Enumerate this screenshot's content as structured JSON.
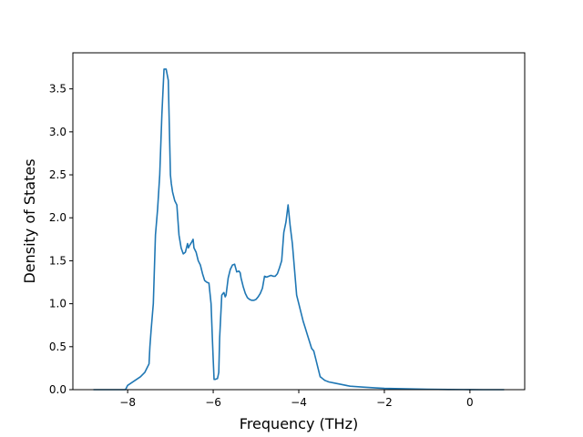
{
  "chart_data": {
    "type": "line",
    "title": "",
    "xlabel": "Frequency (THz)",
    "ylabel": "Density of States",
    "xlim": [
      -9.28,
      1.28
    ],
    "ylim": [
      0.0,
      3.92
    ],
    "x_ticks": [
      -8,
      -6,
      -4,
      -2,
      0
    ],
    "x_tick_labels": [
      "−8",
      "−6",
      "−4",
      "−2",
      "0"
    ],
    "y_ticks": [
      0.0,
      0.5,
      1.0,
      1.5,
      2.0,
      2.5,
      3.0,
      3.5
    ],
    "y_tick_labels": [
      "0.0",
      "0.5",
      "1.0",
      "1.5",
      "2.0",
      "2.5",
      "3.0",
      "3.5"
    ],
    "grid": false,
    "legend": "none",
    "series": [
      {
        "color": "#1f77b4",
        "x": [
          -8.8,
          -8.5,
          -8.2,
          -8.05,
          -8.0,
          -7.85,
          -7.7,
          -7.6,
          -7.55,
          -7.5,
          -7.48,
          -7.45,
          -7.4,
          -7.35,
          -7.3,
          -7.25,
          -7.2,
          -7.15,
          -7.1,
          -7.05,
          -7.0,
          -6.98,
          -6.95,
          -6.9,
          -6.85,
          -6.8,
          -6.75,
          -6.7,
          -6.65,
          -6.6,
          -6.58,
          -6.55,
          -6.5,
          -6.47,
          -6.45,
          -6.4,
          -6.35,
          -6.3,
          -6.25,
          -6.2,
          -6.15,
          -6.1,
          -6.05,
          -6.02,
          -6.0,
          -5.98,
          -5.95,
          -5.9,
          -5.87,
          -5.85,
          -5.82,
          -5.8,
          -5.77,
          -5.75,
          -5.72,
          -5.7,
          -5.65,
          -5.6,
          -5.55,
          -5.5,
          -5.45,
          -5.4,
          -5.37,
          -5.35,
          -5.3,
          -5.25,
          -5.2,
          -5.15,
          -5.1,
          -5.05,
          -5.0,
          -4.95,
          -4.9,
          -4.85,
          -4.8,
          -4.75,
          -4.7,
          -4.65,
          -4.6,
          -4.55,
          -4.5,
          -4.45,
          -4.4,
          -4.35,
          -4.3,
          -4.25,
          -4.2,
          -4.15,
          -4.1,
          -4.05,
          -4.0,
          -3.95,
          -3.9,
          -3.85,
          -3.8,
          -3.75,
          -3.7,
          -3.65,
          -3.6,
          -3.55,
          -3.5,
          -3.47,
          -3.45,
          -3.42,
          -3.4,
          -3.35,
          -3.3,
          -3.2,
          -3.0,
          -2.8,
          -2.5,
          -2.2,
          -2.0,
          -1.5,
          -1.0,
          -0.5,
          0.0,
          0.3,
          0.5,
          0.8
        ],
        "y": [
          0.0,
          0.0,
          0.0,
          0.0,
          0.05,
          0.1,
          0.15,
          0.2,
          0.25,
          0.3,
          0.5,
          0.7,
          1.0,
          1.8,
          2.1,
          2.5,
          3.2,
          3.73,
          3.73,
          3.6,
          2.5,
          2.4,
          2.3,
          2.2,
          2.15,
          1.8,
          1.65,
          1.58,
          1.6,
          1.7,
          1.65,
          1.68,
          1.72,
          1.75,
          1.65,
          1.6,
          1.5,
          1.45,
          1.35,
          1.27,
          1.25,
          1.24,
          1.0,
          0.6,
          0.35,
          0.12,
          0.12,
          0.13,
          0.2,
          0.6,
          0.9,
          1.1,
          1.12,
          1.13,
          1.08,
          1.1,
          1.3,
          1.4,
          1.45,
          1.46,
          1.37,
          1.38,
          1.36,
          1.3,
          1.2,
          1.12,
          1.07,
          1.05,
          1.04,
          1.04,
          1.05,
          1.08,
          1.12,
          1.18,
          1.32,
          1.31,
          1.32,
          1.33,
          1.32,
          1.32,
          1.35,
          1.42,
          1.5,
          1.83,
          1.95,
          2.15,
          1.9,
          1.7,
          1.4,
          1.1,
          1.0,
          0.9,
          0.8,
          0.72,
          0.64,
          0.56,
          0.48,
          0.45,
          0.35,
          0.25,
          0.15,
          0.14,
          0.13,
          0.12,
          0.11,
          0.1,
          0.09,
          0.08,
          0.06,
          0.04,
          0.03,
          0.02,
          0.015,
          0.01,
          0.005,
          0.002,
          0.001,
          0.0,
          0.0,
          0.0
        ]
      }
    ]
  }
}
